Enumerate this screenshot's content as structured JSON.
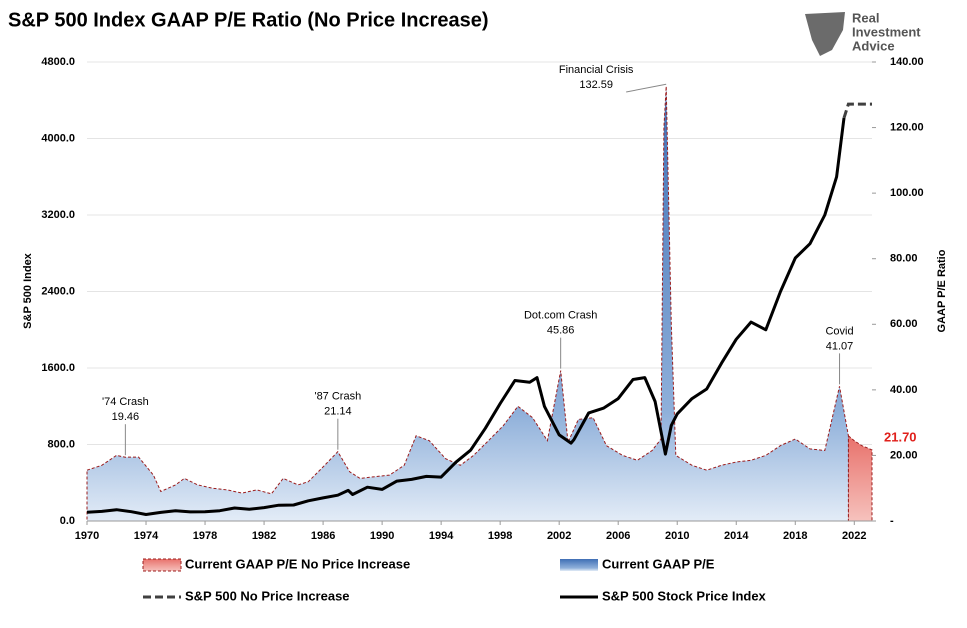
{
  "chart_data": {
    "type": "dual-axis-area-line",
    "title": "S&P 500 Index GAAP P/E Ratio (No Price Increase)",
    "logo_lines": [
      "Real",
      "Investment",
      "Advice"
    ],
    "y_label": "S&P 500 Index",
    "y2_label": "GAAP P/E Ratio",
    "xlim": [
      1970,
      2023.2
    ],
    "xticks": [
      1970,
      1974,
      1978,
      1982,
      1986,
      1990,
      1994,
      1998,
      2002,
      2006,
      2010,
      2014,
      2018,
      2022
    ],
    "ylim": [
      0,
      4800
    ],
    "yticks": [
      {
        "value": 0,
        "label": "0.0"
      },
      {
        "value": 800,
        "label": "800.0"
      },
      {
        "value": 1600,
        "label": "1600.0"
      },
      {
        "value": 2400,
        "label": "2400.0"
      },
      {
        "value": 3200,
        "label": "3200.0"
      },
      {
        "value": 4000,
        "label": "4000.0"
      },
      {
        "value": 4800,
        "label": "4800.0"
      }
    ],
    "y2lim": [
      0,
      140
    ],
    "y2ticks": [
      {
        "value": 0,
        "label": "-"
      },
      {
        "value": 20,
        "label": "20.00"
      },
      {
        "value": 40,
        "label": "40.00"
      },
      {
        "value": 60,
        "label": "60.00"
      },
      {
        "value": 80,
        "label": "80.00"
      },
      {
        "value": 100,
        "label": "100.00"
      },
      {
        "value": 120,
        "label": "120.00"
      },
      {
        "value": 140,
        "label": "140.00"
      }
    ],
    "series": [
      {
        "name": "Current GAAP P/E No Price Increase",
        "kind": "area",
        "axis": "y2",
        "color": "#e8716b",
        "x": [
          2021.6,
          2022,
          2022.5,
          2023.2
        ],
        "values": [
          26,
          24.5,
          23,
          21.7
        ],
        "value_labels": [
          null,
          null,
          null,
          "21.70"
        ]
      },
      {
        "name": "Current GAAP P/E",
        "kind": "area",
        "axis": "y2",
        "color": "#5b87c5",
        "x": [
          1970,
          1971,
          1972,
          1972.6,
          1973.5,
          1974.5,
          1975,
          1976,
          1976.6,
          1977.5,
          1978.5,
          1979.5,
          1980.5,
          1981.5,
          1982.5,
          1983.3,
          1984.3,
          1985,
          1986,
          1987,
          1987.8,
          1988.5,
          1989.5,
          1990.5,
          1991.5,
          1992.3,
          1993.2,
          1994.3,
          1995.3,
          1996.2,
          1997.2,
          1998.2,
          1999.2,
          2000.2,
          2001.2,
          2002.1,
          2002.6,
          2003.3,
          2004.3,
          2005.2,
          2006.3,
          2007.3,
          2008.3,
          2008.9,
          2009.1,
          2009.25,
          2009.6,
          2009.9,
          2011,
          2012,
          2013,
          2014,
          2015,
          2016,
          2017,
          2018,
          2019,
          2020,
          2021,
          2021.6
        ],
        "values": [
          15.5,
          17,
          20,
          19.46,
          19.5,
          14,
          9,
          11,
          13,
          11,
          10,
          9.5,
          8.5,
          9.5,
          8.3,
          13,
          11,
          12,
          16.5,
          21.14,
          15,
          13,
          13.5,
          14,
          17,
          26,
          24.5,
          19,
          17,
          20,
          24.5,
          29,
          35,
          31.5,
          24.5,
          45.86,
          24,
          31,
          31.5,
          23,
          20,
          18.5,
          21.5,
          25,
          120,
          132.59,
          60,
          20,
          17,
          15.5,
          17,
          18,
          18.5,
          20,
          23,
          25,
          22,
          21.5,
          41.07,
          26
        ]
      },
      {
        "name": "S&P 500 No Price Increase",
        "kind": "dashed",
        "axis": "y",
        "color": "#404040",
        "x": [
          2021.3,
          2021.6,
          2023.2
        ],
        "values": [
          4215,
          4360,
          4360
        ]
      },
      {
        "name": "S&P 500 Stock Price Index",
        "kind": "line",
        "axis": "y",
        "color": "#000000",
        "x": [
          1970,
          1971,
          1972,
          1973,
          1974,
          1975,
          1976,
          1977,
          1978,
          1979,
          1980,
          1981,
          1982,
          1983,
          1984,
          1985,
          1986,
          1987,
          1987.7,
          1988,
          1989,
          1990,
          1991,
          1992,
          1993,
          1994,
          1995,
          1996,
          1997,
          1998,
          1999,
          2000,
          2000.5,
          2001,
          2002,
          2002.8,
          2003,
          2004,
          2005,
          2006,
          2007,
          2007.8,
          2008.5,
          2009.2,
          2009.6,
          2010,
          2011,
          2012,
          2013,
          2014,
          2015,
          2016,
          2017,
          2018,
          2019,
          2020,
          2020.8,
          2021.3
        ],
        "values": [
          92,
          100,
          118,
          97,
          68,
          90,
          107,
          95,
          96,
          108,
          136,
          122,
          140,
          165,
          167,
          211,
          242,
          270,
          320,
          277,
          353,
          330,
          417,
          435,
          466,
          459,
          615,
          740,
          970,
          1229,
          1469,
          1450,
          1500,
          1200,
          900,
          815,
          850,
          1130,
          1180,
          1280,
          1480,
          1500,
          1250,
          700,
          1000,
          1120,
          1280,
          1380,
          1650,
          1900,
          2080,
          2000,
          2400,
          2750,
          2900,
          3200,
          3600,
          4215
        ]
      }
    ],
    "annotations": [
      {
        "label": "'74 Crash",
        "x": 1972.6,
        "value": 19.46
      },
      {
        "label": "'87 Crash",
        "x": 1987,
        "value": 21.14
      },
      {
        "label": "Dot.com Crash",
        "x": 2002.1,
        "value": 45.86
      },
      {
        "label": "Financial Crisis",
        "x": 2009.25,
        "value": 132.59
      },
      {
        "label": "Covid",
        "x": 2021,
        "value": 41.07
      }
    ]
  }
}
